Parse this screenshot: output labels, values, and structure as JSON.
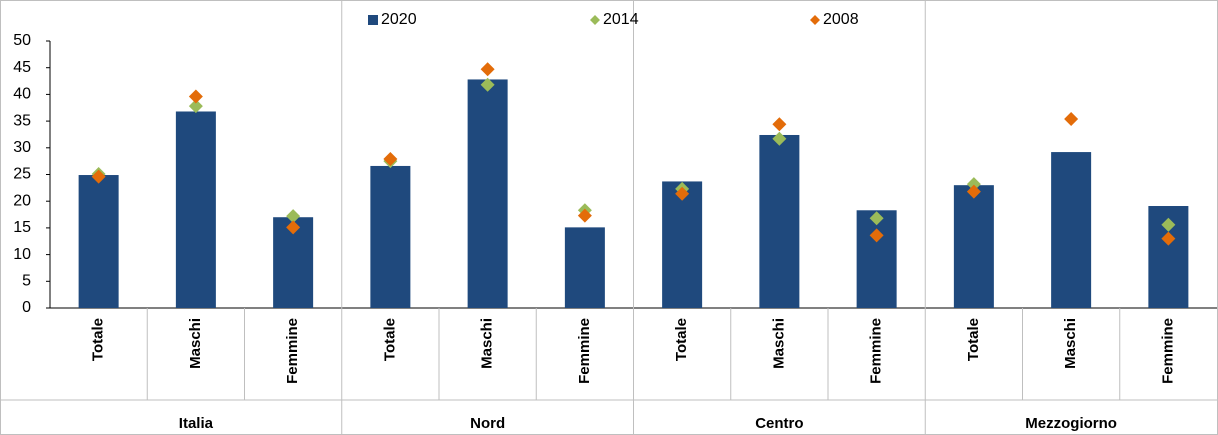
{
  "chart_data": {
    "type": "bar",
    "groups": [
      "Italia",
      "Nord",
      "Centro",
      "Mezzogiorno"
    ],
    "categories": [
      "Totale",
      "Maschi",
      "Femmine",
      "Totale",
      "Maschi",
      "Femmine",
      "Totale",
      "Maschi",
      "Femmine",
      "Totale",
      "Maschi",
      "Femmine"
    ],
    "series": [
      {
        "name": "2020",
        "color": "#1f497d",
        "marker": "bar",
        "values": [
          24.9,
          36.8,
          17.0,
          26.6,
          42.8,
          15.1,
          23.7,
          32.4,
          18.3,
          23.0,
          29.2,
          19.1
        ]
      },
      {
        "name": "2014",
        "color": "#9bbb59",
        "marker": "diamond",
        "values": [
          25.1,
          37.8,
          17.2,
          27.5,
          41.8,
          18.3,
          22.3,
          31.7,
          16.8,
          23.2,
          null,
          15.6
        ]
      },
      {
        "name": "2008",
        "color": "#e36c09",
        "marker": "diamond",
        "values": [
          24.6,
          39.6,
          15.1,
          27.9,
          44.7,
          17.3,
          21.4,
          34.4,
          13.6,
          21.8,
          35.4,
          13.0
        ]
      }
    ],
    "ylim": [
      0,
      50
    ],
    "yticks": [
      0,
      5,
      10,
      15,
      20,
      25,
      30,
      35,
      40,
      45,
      50
    ],
    "legend": "top"
  }
}
